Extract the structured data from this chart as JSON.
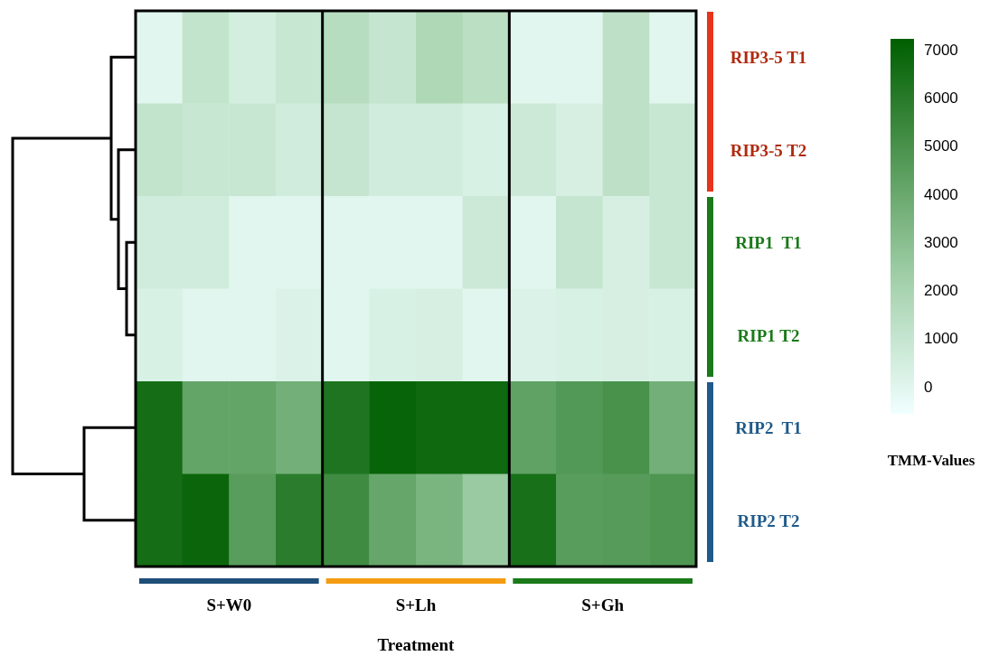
{
  "chart_data": {
    "type": "heatmap",
    "xlabel": "Treatment",
    "clabel": "TMM-Values",
    "categories": [
      null,
      null,
      null,
      null,
      null,
      null,
      null,
      null,
      null,
      null,
      null,
      null
    ],
    "y_categories": [
      "RIP3-5 T1",
      "RIP3-5 T2",
      "RIP1  T1",
      "RIP1 T2",
      "RIP2  T1",
      "RIP2 T2"
    ],
    "cells": [
      [
        0,
        1100,
        500,
        900,
        1500,
        1000,
        1800,
        1400,
        0,
        0,
        1300,
        0
      ],
      [
        1100,
        900,
        900,
        600,
        1000,
        600,
        600,
        300,
        800,
        400,
        1300,
        900
      ],
      [
        600,
        600,
        0,
        0,
        0,
        0,
        0,
        800,
        0,
        1000,
        400,
        900
      ],
      [
        300,
        0,
        0,
        200,
        0,
        300,
        400,
        0,
        200,
        300,
        400,
        300
      ],
      [
        6600,
        4200,
        4200,
        3700,
        6300,
        7000,
        6800,
        6800,
        4300,
        4700,
        5000,
        3700
      ],
      [
        6600,
        6900,
        4500,
        5900,
        5300,
        4100,
        3500,
        2500,
        6500,
        4500,
        4600,
        4800
      ]
    ],
    "clim": [
      -560,
      7230
    ],
    "cticks": [
      0,
      1000,
      2000,
      3000,
      4000,
      5000,
      6000,
      7000
    ],
    "annotations": [
      "S+W0",
      "S+Lh",
      "S+Gh"
    ]
  }
}
